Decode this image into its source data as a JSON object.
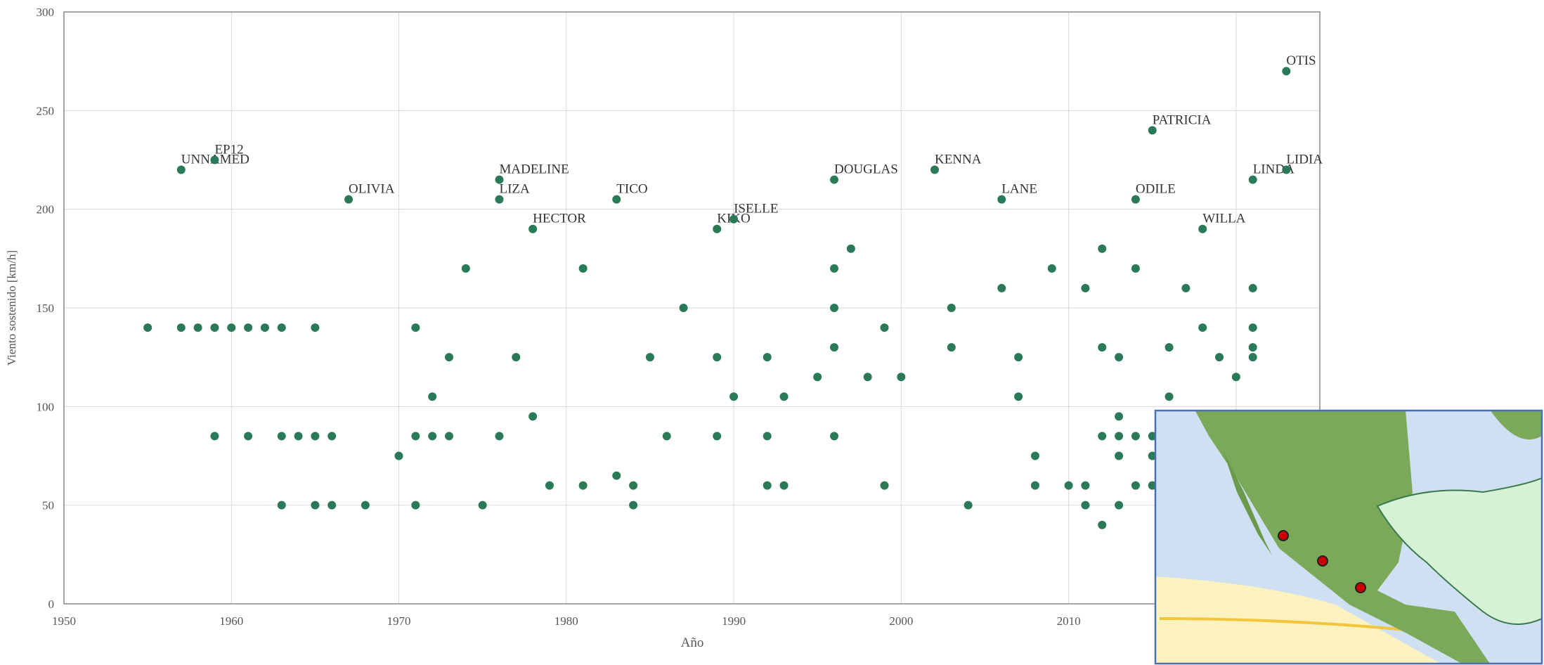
{
  "chart_data": {
    "type": "scatter",
    "x_label": "Año",
    "y_label": "Viento sostenido [km/h]",
    "color": "#2a7a57",
    "xlim": [
      1950,
      2025
    ],
    "xticks": [
      1950,
      1960,
      1970,
      1980,
      1990,
      2000,
      2010,
      2020
    ],
    "ylim": [
      0,
      300
    ],
    "yticks": [
      0,
      50,
      100,
      150,
      200,
      250,
      300
    ],
    "grid": true,
    "x": [
      1955,
      1957,
      1957,
      1958,
      1959,
      1959,
      1959,
      1960,
      1961,
      1961,
      1962,
      1963,
      1963,
      1963,
      1964,
      1965,
      1965,
      1965,
      1966,
      1966,
      1967,
      1968,
      1970,
      1971,
      1971,
      1971,
      1972,
      1972,
      1973,
      1973,
      1974,
      1975,
      1976,
      1976,
      1976,
      1977,
      1978,
      1978,
      1979,
      1981,
      1981,
      1983,
      1983,
      1984,
      1984,
      1985,
      1986,
      1987,
      1989,
      1989,
      1989,
      1990,
      1990,
      1992,
      1992,
      1992,
      1993,
      1993,
      1995,
      1996,
      1996,
      1996,
      1996,
      1996,
      1997,
      1998,
      1999,
      1999,
      2000,
      2002,
      2003,
      2003,
      2004,
      2006,
      2006,
      2007,
      2007,
      2008,
      2008,
      2009,
      2010,
      2011,
      2011,
      2011,
      2012,
      2012,
      2012,
      2012,
      2013,
      2013,
      2013,
      2013,
      2013,
      2014,
      2014,
      2014,
      2014,
      2015,
      2015,
      2015,
      2015,
      2016,
      2016,
      2017,
      2018,
      2018,
      2019,
      2020,
      2021,
      2021,
      2021,
      2021,
      2021,
      2023,
      2023
    ],
    "values": [
      140,
      140,
      220,
      140,
      140,
      85,
      225,
      140,
      140,
      85,
      140,
      140,
      85,
      50,
      85,
      140,
      85,
      50,
      85,
      50,
      205,
      50,
      75,
      140,
      85,
      50,
      105,
      85,
      125,
      85,
      170,
      50,
      215,
      205,
      85,
      125,
      190,
      95,
      60,
      170,
      60,
      205,
      65,
      60,
      50,
      125,
      85,
      150,
      190,
      125,
      85,
      195,
      105,
      125,
      85,
      60,
      105,
      60,
      115,
      215,
      170,
      150,
      130,
      85,
      180,
      115,
      140,
      60,
      115,
      220,
      150,
      130,
      50,
      205,
      160,
      125,
      105,
      75,
      60,
      170,
      60,
      160,
      60,
      50,
      180,
      130,
      85,
      40,
      125,
      95,
      85,
      75,
      50,
      205,
      170,
      85,
      60,
      240,
      85,
      75,
      60,
      130,
      105,
      160,
      190,
      140,
      125,
      115,
      215,
      160,
      140,
      130,
      125,
      270,
      220
    ],
    "labels": [
      null,
      null,
      "UNNAMED",
      null,
      null,
      null,
      "EP12",
      null,
      null,
      null,
      null,
      null,
      null,
      null,
      null,
      null,
      null,
      null,
      null,
      null,
      "OLIVIA",
      null,
      null,
      null,
      null,
      null,
      null,
      null,
      null,
      null,
      null,
      null,
      "MADELINE",
      "LIZA",
      null,
      null,
      "HECTOR",
      null,
      null,
      null,
      null,
      "TICO",
      null,
      null,
      null,
      null,
      null,
      null,
      "KIKO",
      null,
      null,
      "ISELLE",
      null,
      null,
      null,
      null,
      null,
      null,
      null,
      "DOUGLAS",
      null,
      null,
      null,
      null,
      null,
      null,
      null,
      null,
      null,
      "KENNA",
      null,
      null,
      null,
      "LANE",
      null,
      null,
      null,
      null,
      null,
      null,
      null,
      null,
      null,
      null,
      null,
      null,
      null,
      null,
      null,
      null,
      null,
      null,
      null,
      "ODILE",
      null,
      null,
      null,
      "PATRICIA",
      null,
      null,
      null,
      null,
      null,
      null,
      "WILLA",
      null,
      null,
      null,
      "LINDA",
      null,
      null,
      null,
      null,
      "OTIS",
      "LIDIA"
    ]
  }
}
